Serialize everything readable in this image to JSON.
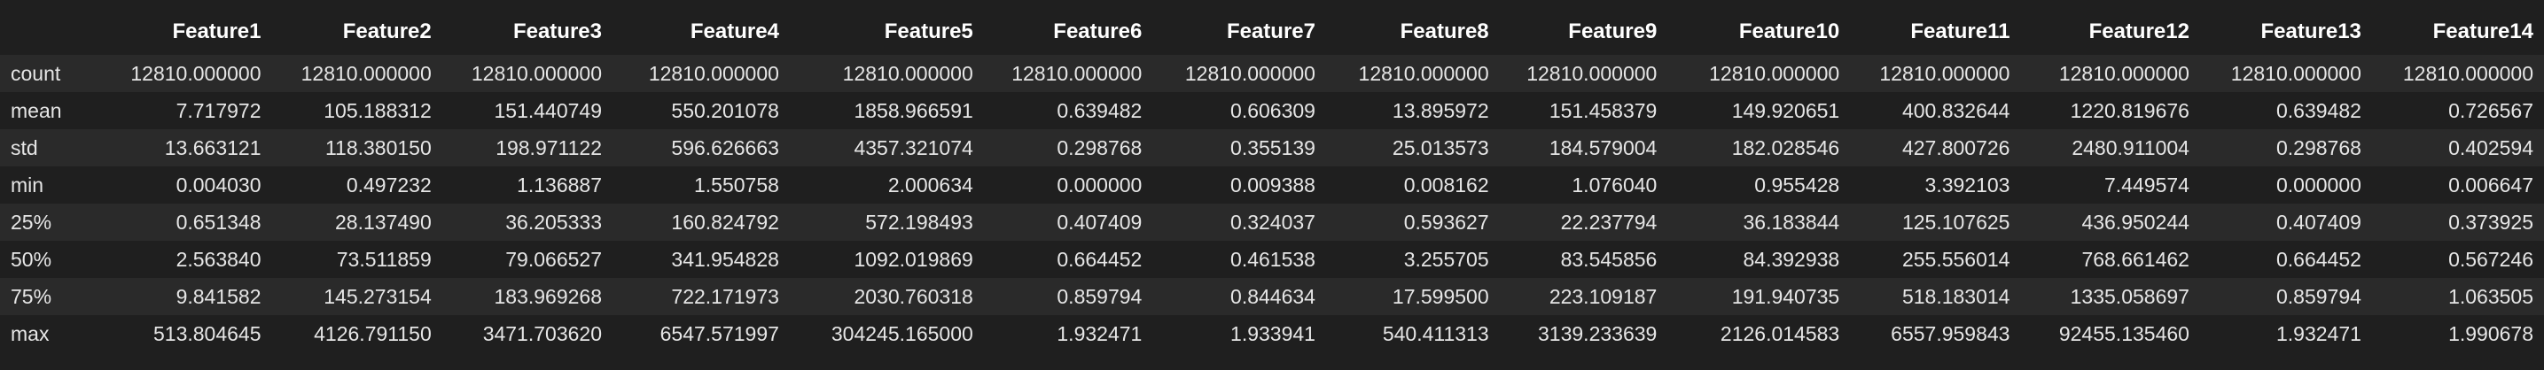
{
  "table": {
    "index_header": "",
    "columns": [
      "Feature1",
      "Feature2",
      "Feature3",
      "Feature4",
      "Feature5",
      "Feature6",
      "Feature7",
      "Feature8",
      "Feature9",
      "Feature10",
      "Feature11",
      "Feature12",
      "Feature13",
      "Feature14"
    ],
    "rows": [
      {
        "label": "count",
        "values": [
          "12810.000000",
          "12810.000000",
          "12810.000000",
          "12810.000000",
          "12810.000000",
          "12810.000000",
          "12810.000000",
          "12810.000000",
          "12810.000000",
          "12810.000000",
          "12810.000000",
          "12810.000000",
          "12810.000000",
          "12810.000000"
        ]
      },
      {
        "label": "mean",
        "values": [
          "7.717972",
          "105.188312",
          "151.440749",
          "550.201078",
          "1858.966591",
          "0.639482",
          "0.606309",
          "13.895972",
          "151.458379",
          "149.920651",
          "400.832644",
          "1220.819676",
          "0.639482",
          "0.726567"
        ]
      },
      {
        "label": "std",
        "values": [
          "13.663121",
          "118.380150",
          "198.971122",
          "596.626663",
          "4357.321074",
          "0.298768",
          "0.355139",
          "25.013573",
          "184.579004",
          "182.028546",
          "427.800726",
          "2480.911004",
          "0.298768",
          "0.402594"
        ]
      },
      {
        "label": "min",
        "values": [
          "0.004030",
          "0.497232",
          "1.136887",
          "1.550758",
          "2.000634",
          "0.000000",
          "0.009388",
          "0.008162",
          "1.076040",
          "0.955428",
          "3.392103",
          "7.449574",
          "0.000000",
          "0.006647"
        ]
      },
      {
        "label": "25%",
        "values": [
          "0.651348",
          "28.137490",
          "36.205333",
          "160.824792",
          "572.198493",
          "0.407409",
          "0.324037",
          "0.593627",
          "22.237794",
          "36.183844",
          "125.107625",
          "436.950244",
          "0.407409",
          "0.373925"
        ]
      },
      {
        "label": "50%",
        "values": [
          "2.563840",
          "73.511859",
          "79.066527",
          "341.954828",
          "1092.019869",
          "0.664452",
          "0.461538",
          "3.255705",
          "83.545856",
          "84.392938",
          "255.556014",
          "768.661462",
          "0.664452",
          "0.567246"
        ]
      },
      {
        "label": "75%",
        "values": [
          "9.841582",
          "145.273154",
          "183.969268",
          "722.171973",
          "2030.760318",
          "0.859794",
          "0.844634",
          "17.599500",
          "223.109187",
          "191.940735",
          "518.183014",
          "1335.058697",
          "0.859794",
          "1.063505"
        ]
      },
      {
        "label": "max",
        "values": [
          "513.804645",
          "4126.791150",
          "3471.703620",
          "6547.571997",
          "304245.165000",
          "1.932471",
          "1.933941",
          "540.411313",
          "3139.233639",
          "2126.014583",
          "6557.959843",
          "92455.135460",
          "1.932471",
          "1.990678"
        ]
      }
    ]
  }
}
